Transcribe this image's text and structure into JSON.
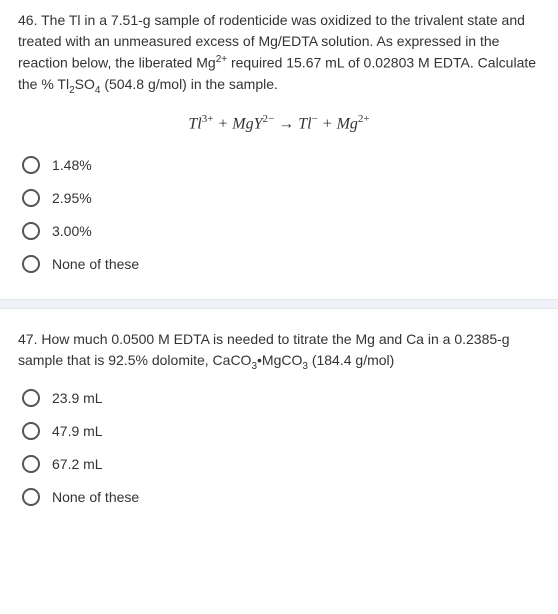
{
  "q46": {
    "number": "46.",
    "text_parts": [
      "The Tl in a 7.51-g sample of rodenticide was oxidized to the trivalent state and treated with an unmeasured excess of Mg/EDTA solution. As expressed in the reaction below, the liberated Mg",
      "2+",
      " required 15.67 mL of 0.02803 M EDTA. Calculate the % Tl",
      "2",
      "SO",
      "4",
      " (504.8 g/mol) in the sample."
    ],
    "equation": {
      "tl3": "Tl",
      "tl3_sup": "3+",
      "plus1": " + ",
      "mgy": "MgY",
      "mgy_sup": "2−",
      "arrow": " → ",
      "tlm": "Tl",
      "tlm_sup": "−",
      "plus2": " + ",
      "mg": "Mg",
      "mg_sup": "2+"
    },
    "options": [
      {
        "label": "1.48%"
      },
      {
        "label": "2.95%"
      },
      {
        "label": "3.00%"
      },
      {
        "label": "None of these"
      }
    ]
  },
  "q47": {
    "number": "47.",
    "text_parts": [
      "How much 0.0500 M EDTA is needed to titrate the Mg and Ca in a 0.2385-g sample that is 92.5% dolomite, CaCO",
      "3",
      "•MgCO",
      "3",
      " (184.4 g/mol)"
    ],
    "options": [
      {
        "label": "23.9 mL"
      },
      {
        "label": "47.9 mL"
      },
      {
        "label": "67.2 mL"
      },
      {
        "label": "None of these"
      }
    ]
  }
}
